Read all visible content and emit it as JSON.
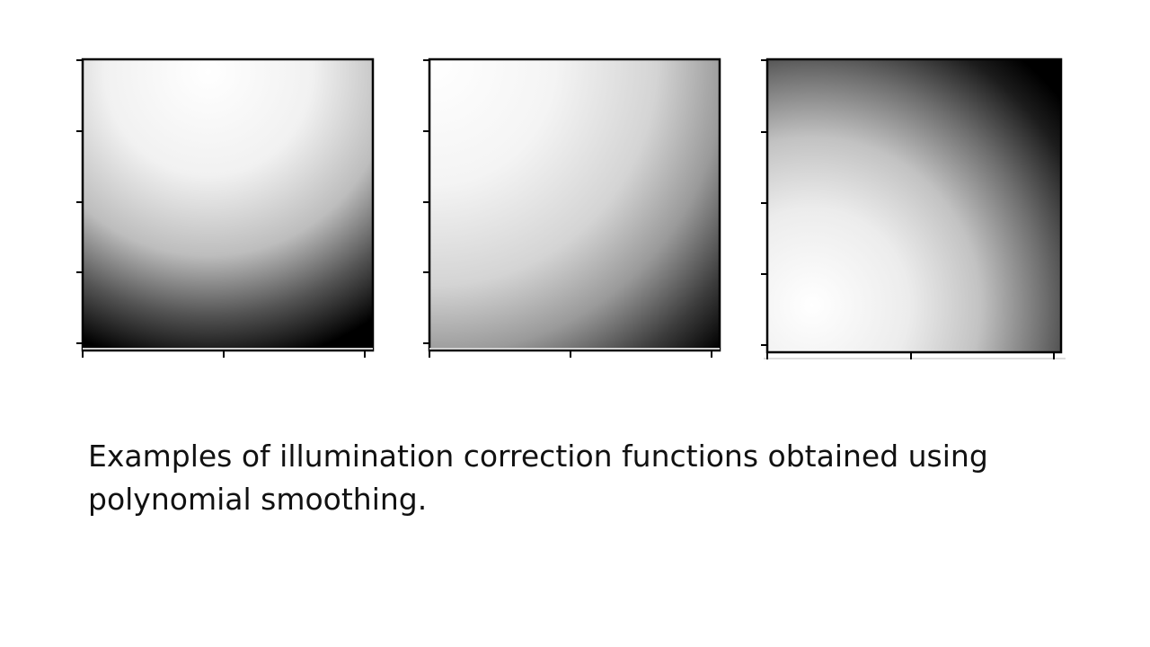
{
  "caption": "Examples of illumination correction functions obtained using polynomial smoothing.",
  "panels": [
    {
      "name": "illumination-function-1",
      "pattern": "bright upper region, dark bottom-left and bottom-right corners"
    },
    {
      "name": "illumination-function-2",
      "pattern": "bright upper-left, dark bottom-right"
    },
    {
      "name": "illumination-function-3",
      "pattern": "dark top-right, bright bottom-left"
    }
  ],
  "colors": {
    "background": "#ffffff",
    "frame": "#000000",
    "text": "#111111"
  }
}
